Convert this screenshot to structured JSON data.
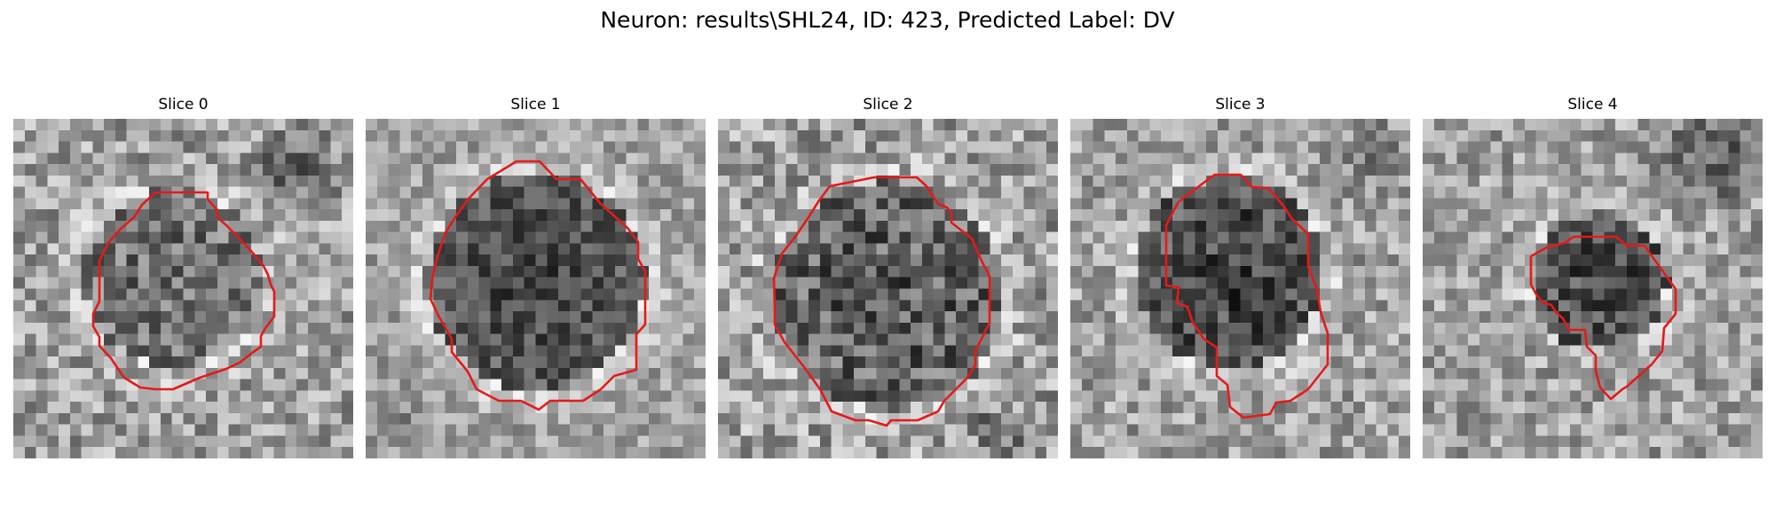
{
  "figure": {
    "title": "Neuron: results\\SHL24, ID: 423, Predicted Label: DV",
    "contour_color": "#e41a1a",
    "colormap": "gray"
  },
  "panels": [
    {
      "title": "Slice 0"
    },
    {
      "title": "Slice 1"
    },
    {
      "title": "Slice 2"
    },
    {
      "title": "Slice 3"
    },
    {
      "title": "Slice 4"
    }
  ]
}
